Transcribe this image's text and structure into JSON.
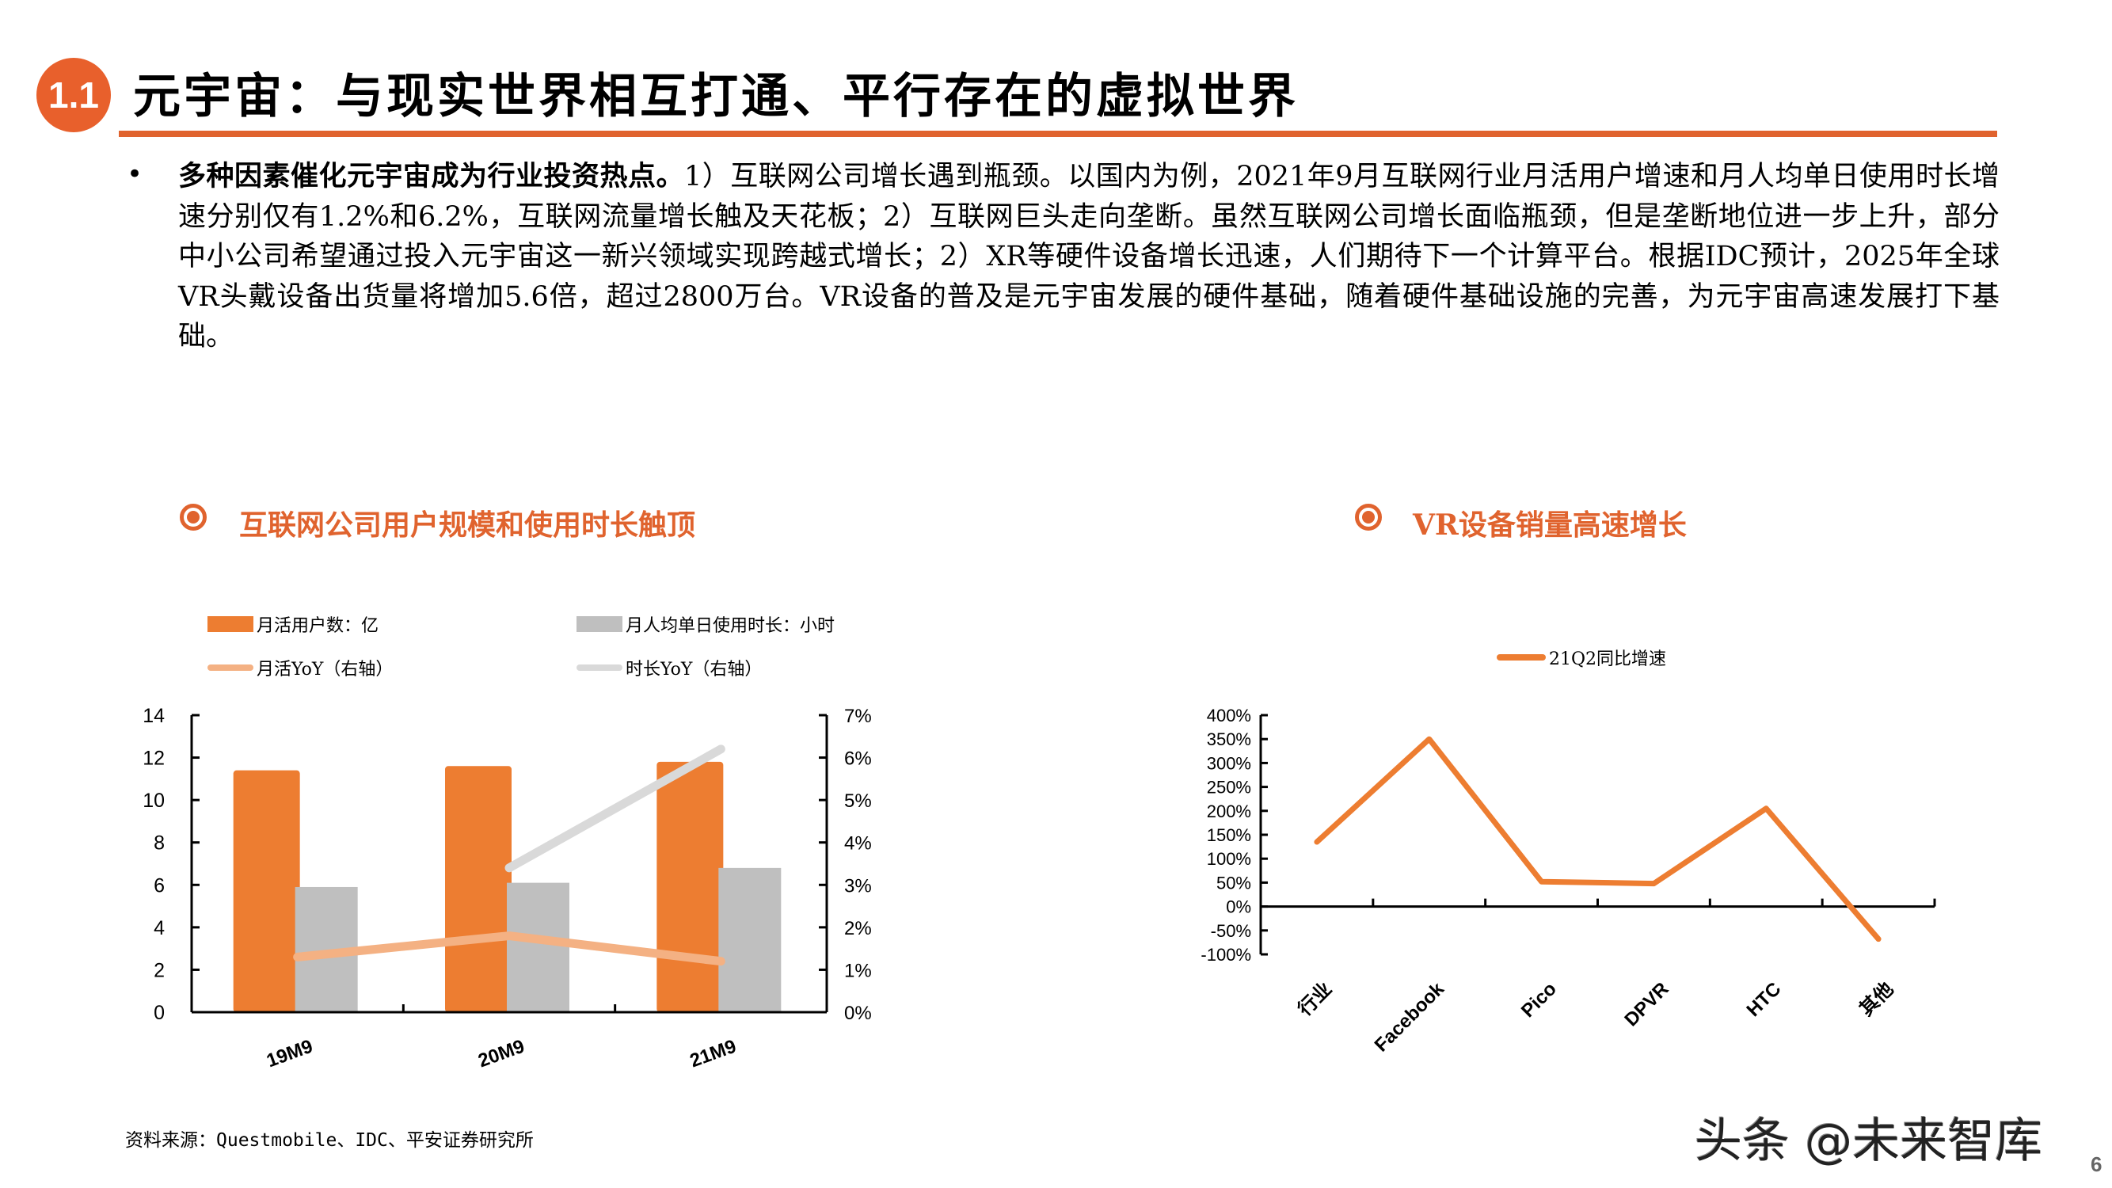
{
  "header": {
    "section_number": "1.1",
    "title": "元宇宙：与现实世界相互打通、平行存在的虚拟世界"
  },
  "body": {
    "bullet": "•",
    "lead": "多种因素催化元宇宙成为行业投资热点。",
    "text": "1）互联网公司增长遇到瓶颈。以国内为例，2021年9月互联网行业月活用户增速和月人均单日使用时长增速分别仅有1.2%和6.2%，互联网流量增长触及天花板；2）互联网巨头走向垄断。虽然互联网公司增长面临瓶颈，但是垄断地位进一步上升，部分中小公司希望通过投入元宇宙这一新兴领域实现跨越式增长；2）XR等硬件设备增长迅速，人们期待下一个计算平台。根据IDC预计，2025年全球VR头戴设备出货量将增加5.6倍，超过2800万台。VR设备的普及是元宇宙发展的硬件基础，随着硬件基础设施的完善，为元宇宙高速发展打下基础。"
  },
  "left_chart": {
    "title": "互联网公司用户规模和使用时长触顶",
    "icon": "target-icon",
    "legend": [
      {
        "label": "月活用户数：亿",
        "type": "bar",
        "color": "#ED7D31"
      },
      {
        "label": "月人均单日使用时长：小时",
        "type": "bar",
        "color": "#BFBFBF"
      },
      {
        "label": "月活YoY（右轴）",
        "type": "line",
        "color": "#F4B183"
      },
      {
        "label": "时长YoY（右轴）",
        "type": "line",
        "color": "#D9D9D9"
      }
    ]
  },
  "right_chart": {
    "title": "VR设备销量高速增长",
    "icon": "target-icon",
    "legend": [
      {
        "label": "21Q2同比增速",
        "type": "line",
        "color": "#ED7D31"
      }
    ]
  },
  "chart_data": [
    {
      "type": "bar",
      "title": "互联网公司用户规模和使用时长触顶",
      "categories": [
        "19M9",
        "20M9",
        "21M9"
      ],
      "series": [
        {
          "name": "月活用户数：亿",
          "kind": "bar",
          "axis": "left",
          "color": "#ED7D31",
          "values": [
            11.4,
            11.6,
            11.8
          ]
        },
        {
          "name": "月人均单日使用时长：小时",
          "kind": "bar",
          "axis": "left",
          "color": "#BFBFBF",
          "values": [
            5.9,
            6.1,
            6.8
          ]
        },
        {
          "name": "月活YoY（右轴）",
          "kind": "line",
          "axis": "right",
          "color": "#F4B183",
          "values": [
            1.3,
            1.8,
            1.2
          ]
        },
        {
          "name": "时长YoY（右轴）",
          "kind": "line",
          "axis": "right",
          "color": "#D9D9D9",
          "values": [
            null,
            3.4,
            6.2
          ]
        }
      ],
      "ylim": [
        0,
        14
      ],
      "yticks": [
        0,
        2,
        4,
        6,
        8,
        10,
        12,
        14
      ],
      "y2lim": [
        0,
        7
      ],
      "y2ticks": [
        "0%",
        "1%",
        "2%",
        "3%",
        "4%",
        "5%",
        "6%",
        "7%"
      ],
      "xlabel": "",
      "ylabel": "",
      "grid": false,
      "legend_position": "top"
    },
    {
      "type": "line",
      "title": "VR设备销量高速增长",
      "categories": [
        "行业",
        "Facebook",
        "Pico",
        "DPVR",
        "HTC",
        "其他"
      ],
      "series": [
        {
          "name": "21Q2同比增速",
          "color": "#ED7D31",
          "values": [
            135,
            350,
            52,
            48,
            205,
            -68
          ]
        }
      ],
      "ylim": [
        -100,
        400
      ],
      "yticks": [
        "-100%",
        "-50%",
        "0%",
        "50%",
        "100%",
        "150%",
        "200%",
        "250%",
        "300%",
        "350%",
        "400%"
      ],
      "xlabel": "",
      "ylabel": "",
      "grid": false,
      "legend_position": "top"
    }
  ],
  "footer": {
    "source": "资料来源：Questmobile、IDC、平安证券研究所",
    "watermark": "头条 @未来智库",
    "page_number": "6"
  }
}
